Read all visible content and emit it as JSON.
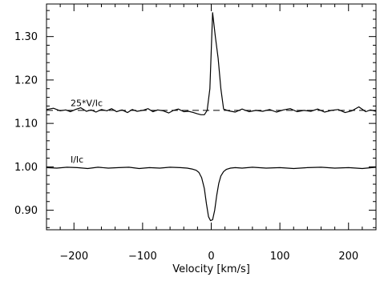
{
  "chart_data": {
    "type": "line",
    "title": "",
    "xlabel": "Velocity [km/s]",
    "ylabel": "",
    "xlim": [
      -240,
      240
    ],
    "ylim": [
      0.855,
      1.375
    ],
    "x_ticks": [
      -200,
      -100,
      0,
      100,
      200
    ],
    "x_tick_labels": [
      "−200",
      "−100",
      "0",
      "100",
      "200"
    ],
    "y_ticks": [
      0.9,
      1.0,
      1.1,
      1.2,
      1.3
    ],
    "y_tick_labels": [
      "0.90",
      "1.00",
      "1.10",
      "1.20",
      "1.30"
    ],
    "grid": false,
    "reference_lines": [
      {
        "y": 1.13,
        "style": "dashed"
      }
    ],
    "annotations": [
      {
        "text": "25*V/Ic",
        "x": -205,
        "y": 1.136
      },
      {
        "text": "I/Ic",
        "x": -205,
        "y": 1.006
      }
    ],
    "series": [
      {
        "label_ref": "25*V/Ic",
        "x": [
          -240,
          -230,
          -220,
          -212,
          -205,
          -198,
          -190,
          -182,
          -175,
          -168,
          -160,
          -152,
          -145,
          -138,
          -130,
          -122,
          -115,
          -108,
          -100,
          -92,
          -85,
          -78,
          -70,
          -62,
          -55,
          -48,
          -40,
          -33,
          -26,
          -20,
          -15,
          -10,
          -6,
          -2,
          2,
          6,
          10,
          14,
          18,
          25,
          35,
          45,
          55,
          65,
          75,
          85,
          95,
          105,
          115,
          125,
          135,
          145,
          155,
          165,
          175,
          185,
          195,
          205,
          215,
          225,
          232,
          240
        ],
        "y": [
          1.132,
          1.135,
          1.129,
          1.131,
          1.127,
          1.132,
          1.136,
          1.128,
          1.131,
          1.126,
          1.132,
          1.129,
          1.134,
          1.127,
          1.131,
          1.125,
          1.132,
          1.128,
          1.13,
          1.134,
          1.127,
          1.131,
          1.129,
          1.124,
          1.13,
          1.133,
          1.127,
          1.128,
          1.125,
          1.122,
          1.12,
          1.12,
          1.13,
          1.18,
          1.355,
          1.3,
          1.25,
          1.18,
          1.133,
          1.129,
          1.126,
          1.133,
          1.127,
          1.13,
          1.128,
          1.132,
          1.126,
          1.131,
          1.134,
          1.127,
          1.13,
          1.128,
          1.133,
          1.126,
          1.13,
          1.132,
          1.125,
          1.129,
          1.138,
          1.127,
          1.131,
          1.128
        ]
      },
      {
        "label_ref": "I/Ic",
        "x": [
          -240,
          -225,
          -210,
          -195,
          -180,
          -165,
          -150,
          -135,
          -120,
          -105,
          -90,
          -75,
          -60,
          -45,
          -35,
          -28,
          -22,
          -18,
          -14,
          -10,
          -7,
          -4,
          -1,
          2,
          5,
          8,
          11,
          14,
          18,
          22,
          28,
          35,
          45,
          60,
          80,
          100,
          120,
          140,
          160,
          180,
          200,
          220,
          240
        ],
        "y": [
          0.998,
          0.997,
          0.999,
          0.998,
          0.996,
          0.999,
          0.997,
          0.998,
          0.999,
          0.996,
          0.998,
          0.997,
          0.999,
          0.998,
          0.997,
          0.995,
          0.992,
          0.987,
          0.975,
          0.95,
          0.915,
          0.885,
          0.876,
          0.878,
          0.9,
          0.935,
          0.962,
          0.979,
          0.989,
          0.994,
          0.997,
          0.998,
          0.997,
          0.999,
          0.997,
          0.998,
          0.996,
          0.998,
          0.999,
          0.997,
          0.998,
          0.996,
          0.999
        ]
      }
    ]
  }
}
